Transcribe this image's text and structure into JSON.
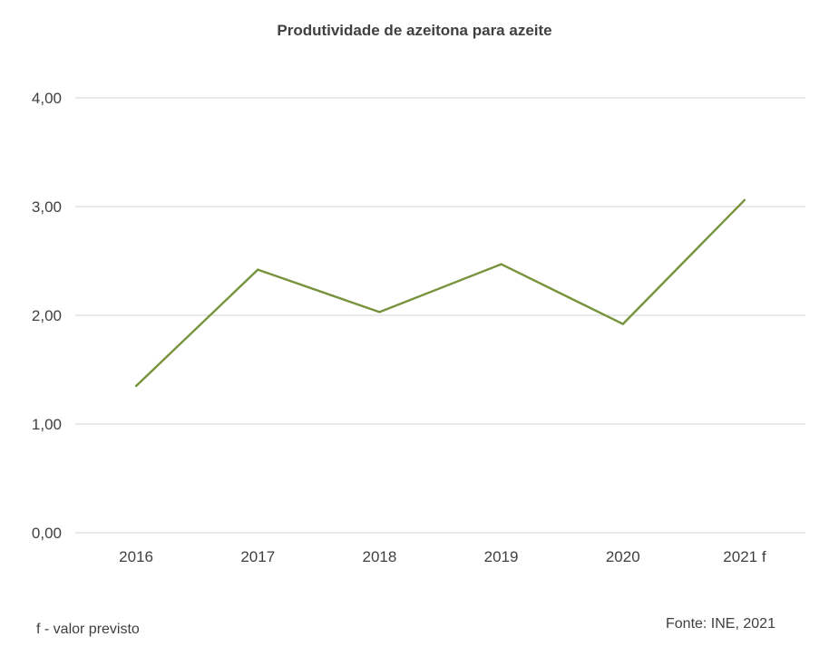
{
  "chart_data": {
    "type": "line",
    "title": "Produtividade de azeitona para azeite",
    "categories": [
      "2016",
      "2017",
      "2018",
      "2019",
      "2020",
      "2021 f"
    ],
    "series": [
      {
        "values": [
          1.35,
          2.42,
          2.03,
          2.47,
          1.92,
          3.06
        ],
        "color": "#77933c"
      }
    ],
    "y_ticks": [
      "0,00",
      "1,00",
      "2,00",
      "3,00",
      "4,00"
    ],
    "ylim": [
      0,
      4
    ],
    "grid": true,
    "legend": "none"
  },
  "footnote": "f - valor previsto",
  "source": "Fonte: INE, 2021",
  "colors": {
    "grid": "#d9d9d9",
    "line": "#77933c",
    "text": "#404040"
  }
}
